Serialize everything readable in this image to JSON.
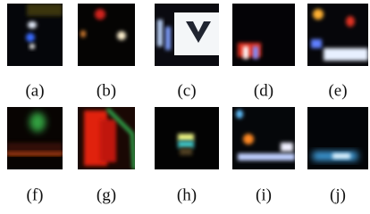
{
  "labels": [
    "(a)",
    "(b)",
    "(c)",
    "(d)",
    "(e)",
    "(f)",
    "(g)",
    "(h)",
    "(i)",
    "(j)"
  ]
}
